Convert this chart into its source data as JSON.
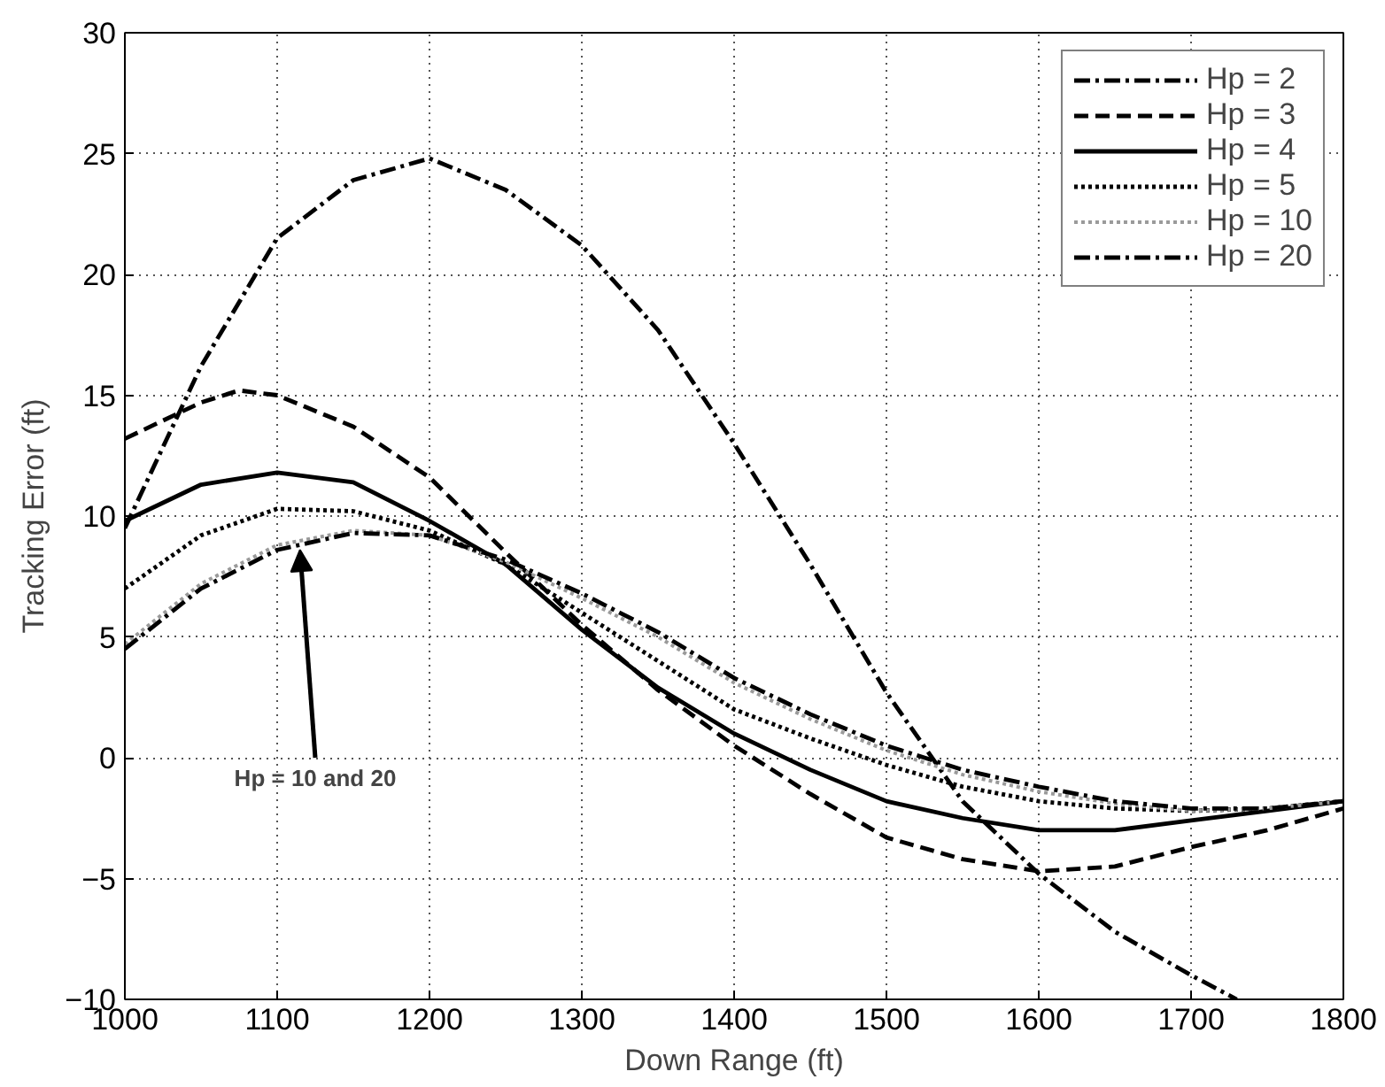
{
  "chart_data": {
    "type": "line",
    "xlabel": "Down Range (ft)",
    "ylabel": "Tracking Error (ft)",
    "x": [
      1000,
      1050,
      1100,
      1150,
      1200,
      1250,
      1300,
      1350,
      1400,
      1450,
      1500,
      1550,
      1600,
      1650,
      1700,
      1730
    ],
    "xlim": [
      1000,
      1800
    ],
    "ylim": [
      -10,
      30
    ],
    "xticks": [
      1000,
      1100,
      1200,
      1300,
      1400,
      1500,
      1600,
      1700,
      1800
    ],
    "yticks": [
      -10,
      -5,
      0,
      5,
      10,
      15,
      20,
      25,
      30
    ],
    "grid": true,
    "legend": "top right",
    "marker": "none",
    "annotations": [
      {
        "text": "Hp = 10 and 20",
        "x": 1115,
        "y": 8.6
      }
    ],
    "series": [
      {
        "name": "Hp = 2",
        "color": "#000000",
        "line_style": "dashdot",
        "values": [
          9.5,
          16.2,
          21.5,
          23.9,
          24.8,
          23.5,
          21.2,
          17.7,
          13,
          8,
          2.7,
          -1.8,
          -4.8,
          -7.2,
          -9,
          -10
        ]
      },
      {
        "name": "Hp = 3",
        "color": "#000000",
        "line_style": "dashed",
        "x": [
          1000,
          1050,
          1075,
          1100,
          1150,
          1200,
          1250,
          1300,
          1350,
          1400,
          1450,
          1500,
          1550,
          1600,
          1650,
          1700,
          1750,
          1800
        ],
        "values": [
          13.2,
          14.7,
          15.2,
          15,
          13.7,
          11.6,
          8.5,
          5.5,
          2.8,
          0.5,
          -1.5,
          -3.3,
          -4.2,
          -4.7,
          -4.5,
          -3.7,
          -3,
          -2.1
        ]
      },
      {
        "name": "Hp = 4",
        "color": "#000000",
        "line_style": "solid",
        "x": [
          1000,
          1050,
          1100,
          1150,
          1200,
          1250,
          1300,
          1350,
          1400,
          1450,
          1500,
          1550,
          1600,
          1650,
          1700,
          1750,
          1800
        ],
        "values": [
          9.8,
          11.3,
          11.8,
          11.4,
          9.8,
          8,
          5.3,
          2.9,
          1,
          -0.5,
          -1.8,
          -2.5,
          -3,
          -3,
          -2.6,
          -2.2,
          -1.8
        ]
      },
      {
        "name": "Hp = 5",
        "color": "#000000",
        "line_style": "dotted",
        "x": [
          1000,
          1050,
          1100,
          1150,
          1200,
          1250,
          1300,
          1350,
          1400,
          1450,
          1500,
          1550,
          1600,
          1650,
          1700,
          1750,
          1800
        ],
        "values": [
          7,
          9.2,
          10.3,
          10.2,
          9.4,
          8,
          6,
          4,
          2,
          0.8,
          -0.3,
          -1.2,
          -1.8,
          -2.1,
          -2.2,
          -2.1,
          -1.8
        ]
      },
      {
        "name": "Hp = 10",
        "color": "#9a9a9a",
        "line_style": "dotted",
        "x": [
          1000,
          1050,
          1100,
          1150,
          1200,
          1250,
          1300,
          1350,
          1400,
          1450,
          1500,
          1550,
          1600,
          1650,
          1700,
          1750,
          1800
        ],
        "values": [
          4.7,
          7.2,
          8.8,
          9.4,
          9.2,
          8.1,
          6.6,
          5,
          3.1,
          1.6,
          0.3,
          -0.7,
          -1.4,
          -1.9,
          -2.2,
          -2.1,
          -1.8
        ]
      },
      {
        "name": "Hp = 20",
        "color": "#000000",
        "line_style": "dashdot",
        "x": [
          1000,
          1050,
          1100,
          1150,
          1200,
          1250,
          1300,
          1350,
          1400,
          1450,
          1500,
          1550,
          1600,
          1650,
          1700,
          1750,
          1800
        ],
        "values": [
          4.5,
          7,
          8.6,
          9.3,
          9.2,
          8.2,
          6.8,
          5.2,
          3.3,
          1.8,
          0.5,
          -0.5,
          -1.2,
          -1.8,
          -2.1,
          -2.1,
          -1.8
        ]
      }
    ]
  }
}
